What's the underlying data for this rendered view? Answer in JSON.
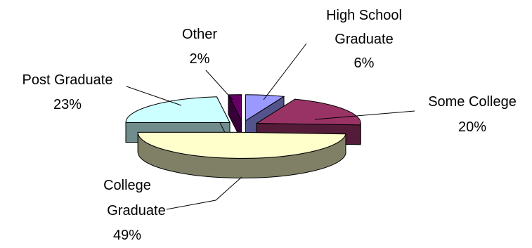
{
  "chart_data": {
    "type": "pie",
    "style": "3d-exploded",
    "categories": [
      "High School Graduate",
      "Some College",
      "College Graduate",
      "Post Graduate",
      "Other"
    ],
    "values": [
      6,
      20,
      49,
      23,
      2
    ],
    "colors": [
      "#9999ff",
      "#993366",
      "#ffffcc",
      "#ccffff",
      "#660066"
    ],
    "labels": [
      {
        "name": [
          "High School",
          "Graduate"
        ],
        "pct": "6%"
      },
      {
        "name": [
          "Some College"
        ],
        "pct": "20%"
      },
      {
        "name": [
          "College",
          "Graduate"
        ],
        "pct": "49%"
      },
      {
        "name": [
          "Post Graduate"
        ],
        "pct": "23%"
      },
      {
        "name": [
          "Other"
        ],
        "pct": "2%"
      }
    ]
  }
}
